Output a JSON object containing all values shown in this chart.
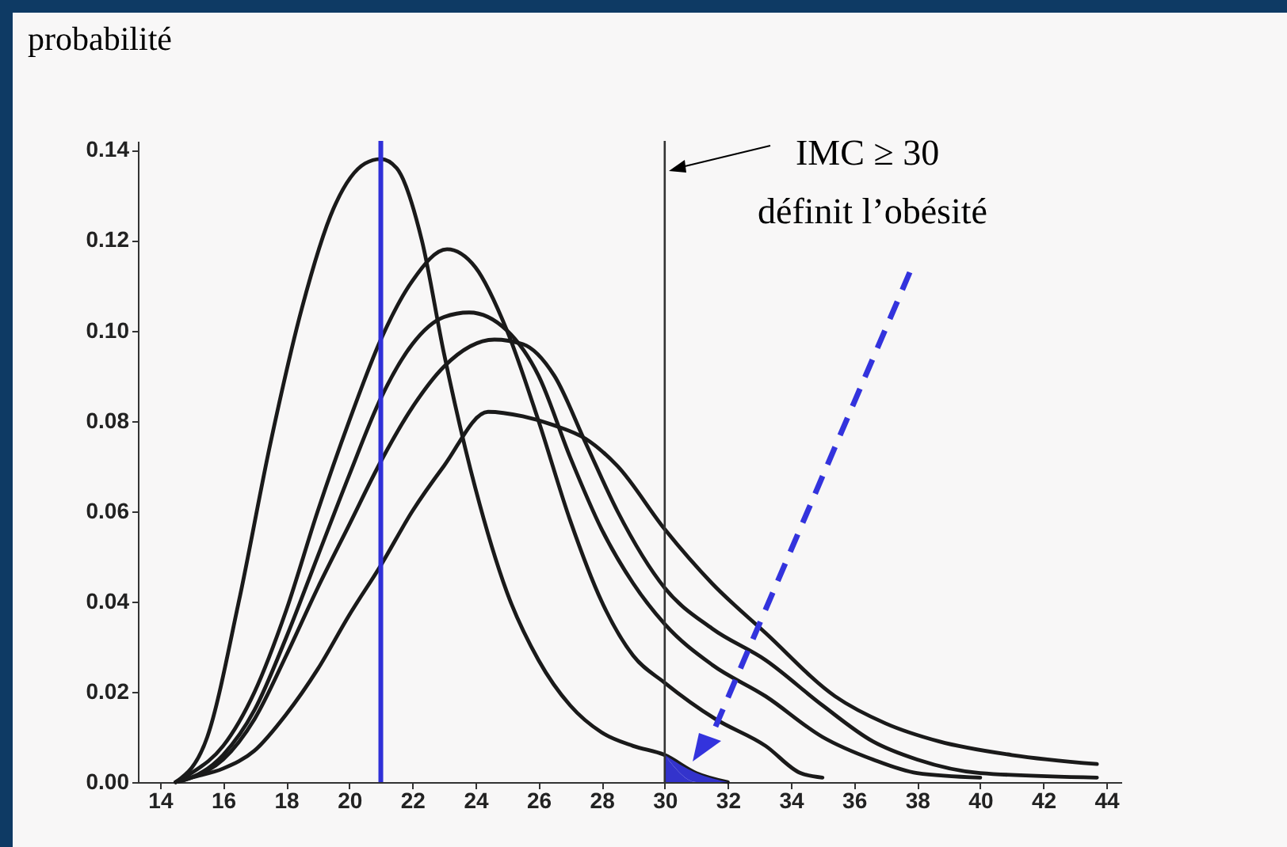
{
  "chart_data": {
    "type": "line",
    "ylabel": "probabilité",
    "annotations": [
      "IMC ≥ 30",
      "définit l’obésité"
    ],
    "xlim": [
      13.3,
      44.5
    ],
    "xticks": [
      14,
      16,
      18,
      20,
      22,
      24,
      26,
      28,
      30,
      32,
      34,
      36,
      38,
      40,
      42,
      44
    ],
    "ylim": [
      0,
      0.142
    ],
    "yticks": [
      {
        "value": 0,
        "label": "0.00"
      },
      {
        "value": 0.02,
        "label": "0.02"
      },
      {
        "value": 0.04,
        "label": "0.04"
      },
      {
        "value": 0.06,
        "label": "0.06"
      },
      {
        "value": 0.08,
        "label": "0.08"
      },
      {
        "value": 0.1,
        "label": "0.10"
      },
      {
        "value": 0.12,
        "label": "0.12"
      },
      {
        "value": 0.14,
        "label": "0.14"
      }
    ],
    "grid": false,
    "series": [
      {
        "color": "#1a1a1a",
        "x": [
          14.5,
          15.5,
          16.5,
          17.5,
          18.5,
          19.5,
          20.5,
          21,
          21.5,
          22.3,
          23,
          24,
          25,
          26,
          27,
          28,
          29,
          30,
          31,
          32
        ],
        "values": [
          0,
          0.01,
          0.04,
          0.075,
          0.105,
          0.127,
          0.137,
          0.138,
          0.136,
          0.12,
          0.095,
          0.065,
          0.042,
          0.027,
          0.017,
          0.011,
          0.008,
          0.006,
          0.002,
          0
        ]
      },
      {
        "color": "#1a1a1a",
        "x": [
          14.5,
          15,
          16,
          17,
          18,
          19,
          20,
          21,
          22,
          23.1,
          24,
          25,
          26,
          27,
          28,
          29,
          30,
          31.6,
          33.2,
          34.3,
          35
        ],
        "values": [
          0,
          0.002,
          0.008,
          0.02,
          0.038,
          0.06,
          0.08,
          0.098,
          0.111,
          0.118,
          0.114,
          0.1,
          0.08,
          0.058,
          0.04,
          0.028,
          0.022,
          0.014,
          0.008,
          0.002,
          0.001
        ]
      },
      {
        "color": "#1a1a1a",
        "x": [
          14.5,
          15,
          16,
          17,
          18,
          19,
          20,
          21,
          22,
          23,
          23.8,
          25,
          26,
          27,
          28,
          29,
          30,
          31.5,
          33.2,
          35,
          36.6,
          38,
          40
        ],
        "values": [
          0,
          0.001,
          0.006,
          0.016,
          0.032,
          0.05,
          0.068,
          0.085,
          0.097,
          0.103,
          0.104,
          0.1,
          0.09,
          0.072,
          0.056,
          0.044,
          0.035,
          0.026,
          0.019,
          0.01,
          0.005,
          0.002,
          0.001
        ]
      },
      {
        "color": "#1a1a1a",
        "x": [
          14.5,
          15,
          16,
          17,
          18,
          19,
          20,
          21,
          22,
          23,
          24.6,
          25.5,
          26.5,
          27.5,
          28.5,
          30,
          31.5,
          33.2,
          35,
          36.6,
          38,
          40,
          43.7
        ],
        "values": [
          0,
          0.001,
          0.005,
          0.014,
          0.028,
          0.043,
          0.057,
          0.071,
          0.083,
          0.092,
          0.098,
          0.097,
          0.09,
          0.075,
          0.06,
          0.043,
          0.034,
          0.027,
          0.017,
          0.009,
          0.005,
          0.002,
          0.001
        ]
      },
      {
        "color": "#1a1a1a",
        "x": [
          14.5,
          15,
          16,
          17,
          18,
          19,
          20,
          21,
          22,
          23,
          24.4,
          25.5,
          26.5,
          27.5,
          28.5,
          30,
          31.5,
          33.2,
          35.4,
          37,
          38.7,
          41,
          43.7
        ],
        "values": [
          0,
          0.001,
          0.003,
          0.007,
          0.015,
          0.025,
          0.037,
          0.048,
          0.06,
          0.07,
          0.082,
          0.081,
          0.079,
          0.076,
          0.07,
          0.056,
          0.044,
          0.033,
          0.019,
          0.013,
          0.009,
          0.006,
          0.004
        ]
      },
      {
        "type": "area",
        "color": "#3333cc",
        "x": [
          30,
          31,
          32
        ],
        "values": [
          0.006,
          0.002,
          0
        ]
      }
    ],
    "ref_lines": [
      {
        "axis": "x",
        "value": 21,
        "color": "#3030d8"
      },
      {
        "axis": "x",
        "value": 30,
        "color": "#333333"
      }
    ]
  }
}
